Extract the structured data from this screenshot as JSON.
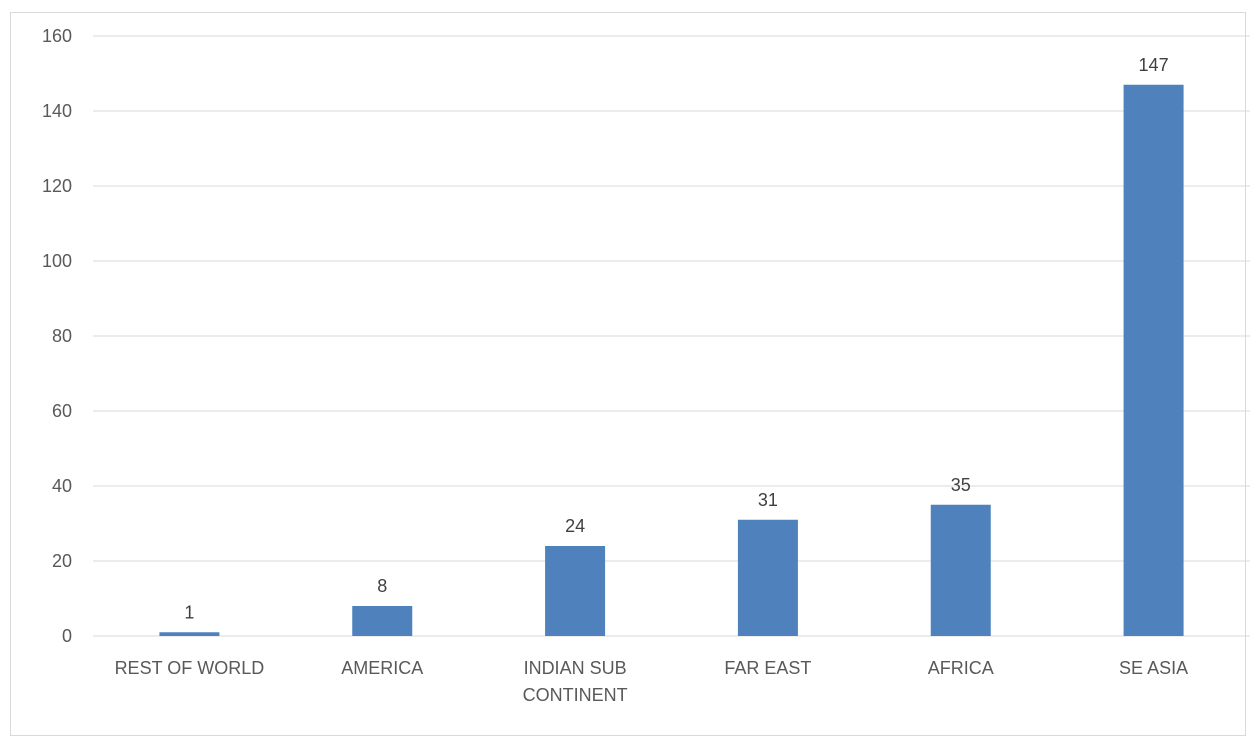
{
  "chart_data": {
    "type": "bar",
    "title": "",
    "xlabel": "",
    "ylabel": "",
    "categories": [
      [
        "REST OF WORLD"
      ],
      [
        "AMERICA"
      ],
      [
        "INDIAN SUB",
        "CONTINENT"
      ],
      [
        "FAR EAST"
      ],
      [
        "AFRICA"
      ],
      [
        "SE ASIA"
      ]
    ],
    "values": [
      1,
      8,
      24,
      31,
      35,
      147
    ],
    "ylim": [
      0,
      160
    ],
    "yticks": [
      "0",
      "20",
      "40",
      "60",
      "80",
      "100",
      "120",
      "140",
      "160"
    ],
    "grid": true,
    "legend": "none",
    "bar_color": "#4f81bd"
  }
}
